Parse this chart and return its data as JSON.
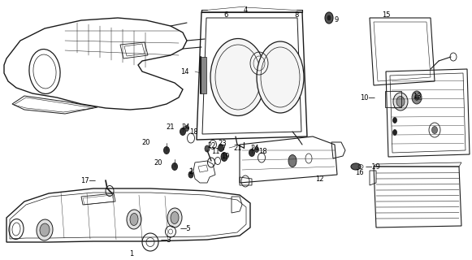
{
  "bg_color": "#ffffff",
  "fig_width": 5.81,
  "fig_height": 3.2,
  "dpi": 100,
  "lc": "#1a1a1a",
  "fs": 6.0
}
